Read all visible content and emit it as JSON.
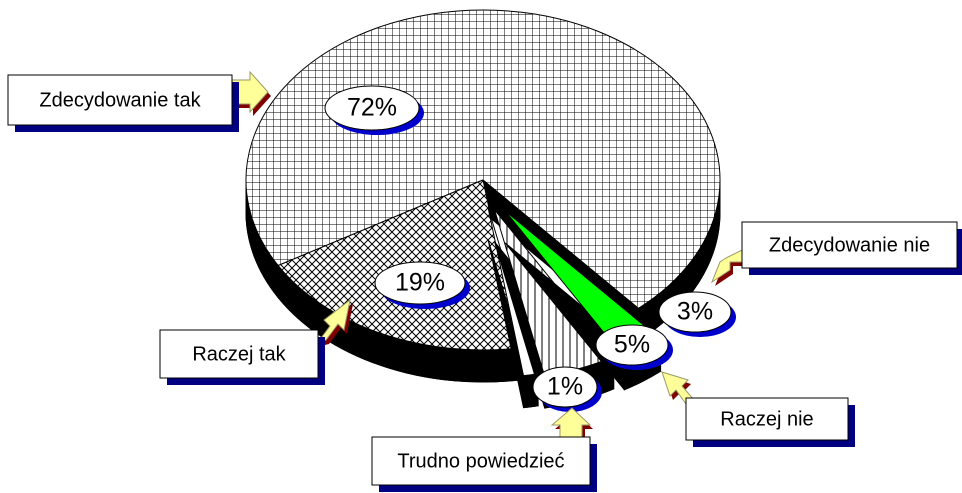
{
  "chart_data": {
    "type": "pie",
    "categories": [
      "Zdecydowanie tak",
      "Raczej tak",
      "Trudno powiedzieć",
      "Raczej nie",
      "Zdecydowanie nie"
    ],
    "values": [
      72,
      19,
      1,
      5,
      3
    ],
    "value_labels": [
      "72%",
      "19%",
      "1%",
      "5%",
      "3%"
    ],
    "colors": [
      "#ffffff",
      "#ffffff",
      "#ffffff",
      "#ffffff",
      "#00ff00"
    ]
  }
}
